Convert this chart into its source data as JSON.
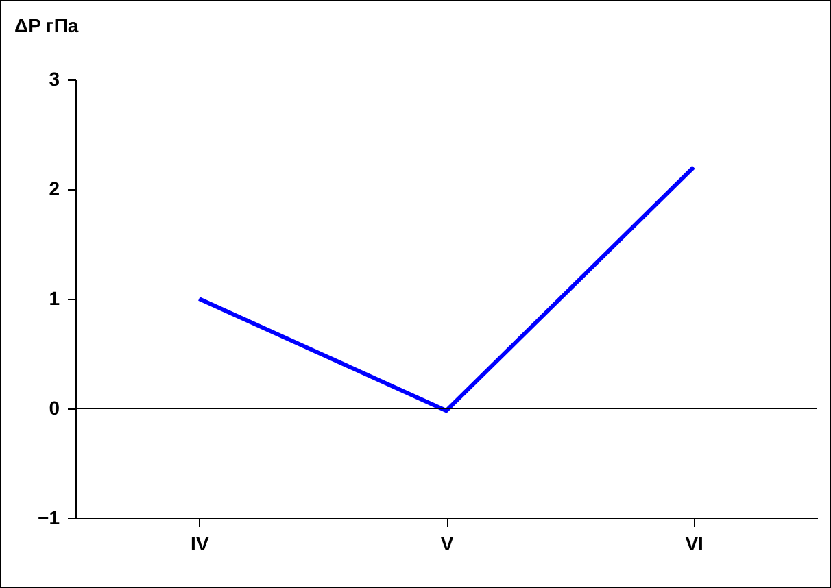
{
  "chart_data": {
    "type": "line",
    "ylabel": "ΔP гПа",
    "categories": [
      "IV",
      "V",
      "VI"
    ],
    "series": [
      {
        "color": "#0000ff",
        "values": [
          1.0,
          -0.02,
          2.2
        ]
      }
    ],
    "ylim": [
      -1,
      3
    ],
    "yticks": [
      -1,
      0,
      1,
      2,
      3
    ],
    "grid": false,
    "legend": false,
    "marker": "none",
    "line_style": "solid",
    "ref_lines": [
      {
        "axis": "y",
        "value": 0,
        "color": "#000000"
      }
    ]
  }
}
